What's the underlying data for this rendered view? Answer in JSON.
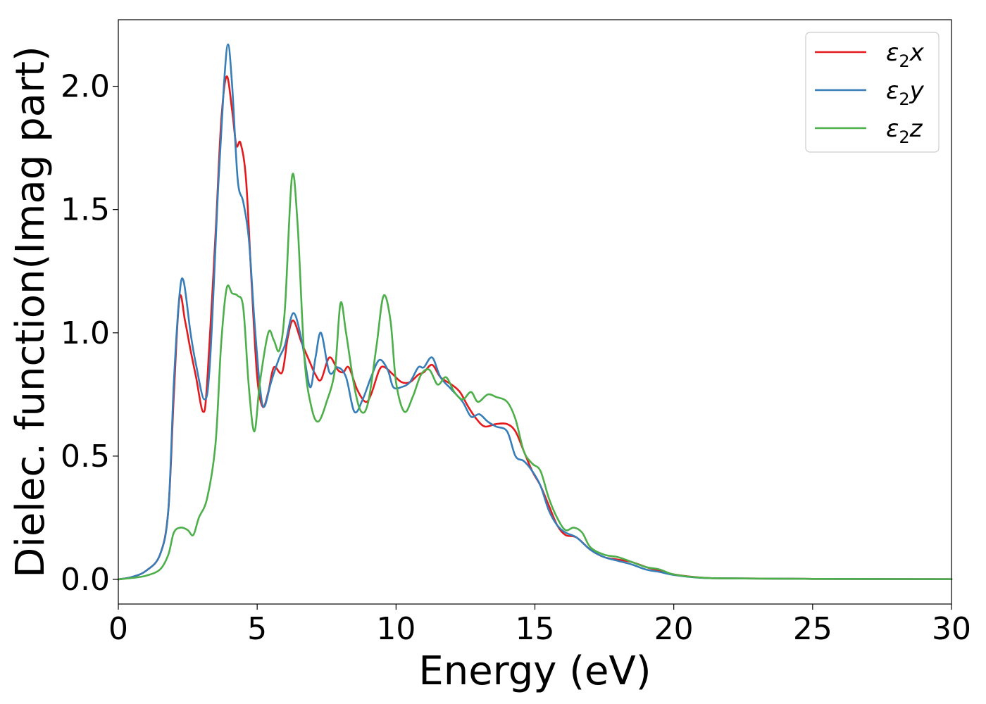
{
  "chart_data": {
    "type": "line",
    "title": "",
    "xlabel": "Energy (eV)",
    "ylabel": "Dielec. function(Imag part)",
    "xlim": [
      0,
      30
    ],
    "ylim": [
      -0.1,
      2.27
    ],
    "xticks": [
      0,
      5,
      10,
      15,
      20,
      25,
      30
    ],
    "yticks": [
      0.0,
      0.5,
      1.0,
      1.5,
      2.0
    ],
    "xtick_labels": [
      "0",
      "5",
      "10",
      "15",
      "20",
      "25",
      "30"
    ],
    "ytick_labels": [
      "0.0",
      "0.5",
      "1.0",
      "1.5",
      "2.0"
    ],
    "grid": false,
    "legend_position": "top-right",
    "series": [
      {
        "name": "ε₂x",
        "legend_main": "ε",
        "legend_sub": "2",
        "legend_suffix": "x",
        "color": "#e41a1c",
        "points": [
          [
            0,
            0
          ],
          [
            0.5,
            0.01
          ],
          [
            1,
            0.035
          ],
          [
            1.5,
            0.1
          ],
          [
            1.8,
            0.28
          ],
          [
            2.0,
            0.75
          ],
          [
            2.2,
            1.14
          ],
          [
            2.4,
            1.05
          ],
          [
            2.6,
            0.93
          ],
          [
            2.8,
            0.82
          ],
          [
            3.05,
            0.68
          ],
          [
            3.2,
            0.8
          ],
          [
            3.5,
            1.4
          ],
          [
            3.7,
            1.85
          ],
          [
            3.9,
            2.04
          ],
          [
            4.1,
            1.9
          ],
          [
            4.25,
            1.76
          ],
          [
            4.4,
            1.77
          ],
          [
            4.6,
            1.62
          ],
          [
            4.8,
            1.2
          ],
          [
            5.0,
            0.82
          ],
          [
            5.2,
            0.7
          ],
          [
            5.4,
            0.76
          ],
          [
            5.6,
            0.86
          ],
          [
            5.9,
            0.84
          ],
          [
            6.1,
            0.98
          ],
          [
            6.3,
            1.05
          ],
          [
            6.6,
            0.96
          ],
          [
            6.9,
            0.88
          ],
          [
            7.1,
            0.83
          ],
          [
            7.3,
            0.81
          ],
          [
            7.6,
            0.9
          ],
          [
            7.9,
            0.85
          ],
          [
            8.1,
            0.84
          ],
          [
            8.3,
            0.86
          ],
          [
            8.6,
            0.77
          ],
          [
            8.9,
            0.72
          ],
          [
            9.1,
            0.75
          ],
          [
            9.4,
            0.85
          ],
          [
            9.6,
            0.86
          ],
          [
            9.9,
            0.83
          ],
          [
            10.2,
            0.8
          ],
          [
            10.5,
            0.8
          ],
          [
            10.8,
            0.83
          ],
          [
            11.0,
            0.84
          ],
          [
            11.3,
            0.87
          ],
          [
            11.6,
            0.82
          ],
          [
            12.0,
            0.79
          ],
          [
            12.3,
            0.76
          ],
          [
            12.6,
            0.7
          ],
          [
            12.9,
            0.65
          ],
          [
            13.2,
            0.62
          ],
          [
            13.6,
            0.63
          ],
          [
            14.0,
            0.63
          ],
          [
            14.3,
            0.6
          ],
          [
            14.6,
            0.52
          ],
          [
            14.9,
            0.44
          ],
          [
            15.2,
            0.38
          ],
          [
            15.5,
            0.3
          ],
          [
            15.8,
            0.22
          ],
          [
            16.1,
            0.18
          ],
          [
            16.5,
            0.17
          ],
          [
            17.0,
            0.12
          ],
          [
            17.5,
            0.09
          ],
          [
            18.0,
            0.08
          ],
          [
            18.5,
            0.07
          ],
          [
            19.0,
            0.05
          ],
          [
            19.5,
            0.035
          ],
          [
            20.0,
            0.02
          ],
          [
            21,
            0.007
          ],
          [
            22,
            0.004
          ],
          [
            25,
            0.002
          ],
          [
            30,
            0.001
          ]
        ]
      },
      {
        "name": "ε₂y",
        "legend_main": "ε",
        "legend_sub": "2",
        "legend_suffix": "y",
        "color": "#377eb8",
        "points": [
          [
            0,
            0
          ],
          [
            0.5,
            0.01
          ],
          [
            1,
            0.035
          ],
          [
            1.5,
            0.1
          ],
          [
            1.8,
            0.28
          ],
          [
            2.0,
            0.8
          ],
          [
            2.2,
            1.15
          ],
          [
            2.35,
            1.21
          ],
          [
            2.6,
            1.0
          ],
          [
            2.8,
            0.87
          ],
          [
            3.1,
            0.73
          ],
          [
            3.3,
            0.88
          ],
          [
            3.6,
            1.6
          ],
          [
            3.8,
            2.0
          ],
          [
            3.95,
            2.17
          ],
          [
            4.1,
            2.0
          ],
          [
            4.3,
            1.62
          ],
          [
            4.5,
            1.53
          ],
          [
            4.7,
            1.38
          ],
          [
            4.9,
            1.05
          ],
          [
            5.1,
            0.78
          ],
          [
            5.25,
            0.7
          ],
          [
            5.5,
            0.8
          ],
          [
            5.8,
            0.9
          ],
          [
            6.0,
            0.95
          ],
          [
            6.3,
            1.08
          ],
          [
            6.6,
            0.97
          ],
          [
            6.9,
            0.78
          ],
          [
            7.1,
            0.9
          ],
          [
            7.3,
            1.0
          ],
          [
            7.6,
            0.84
          ],
          [
            7.9,
            0.86
          ],
          [
            8.2,
            0.82
          ],
          [
            8.5,
            0.68
          ],
          [
            8.8,
            0.73
          ],
          [
            9.1,
            0.82
          ],
          [
            9.4,
            0.89
          ],
          [
            9.7,
            0.85
          ],
          [
            9.9,
            0.78
          ],
          [
            10.2,
            0.78
          ],
          [
            10.5,
            0.8
          ],
          [
            10.8,
            0.86
          ],
          [
            11.0,
            0.86
          ],
          [
            11.3,
            0.9
          ],
          [
            11.6,
            0.82
          ],
          [
            12.0,
            0.77
          ],
          [
            12.4,
            0.72
          ],
          [
            12.7,
            0.66
          ],
          [
            13.0,
            0.67
          ],
          [
            13.3,
            0.64
          ],
          [
            13.6,
            0.62
          ],
          [
            14.0,
            0.6
          ],
          [
            14.3,
            0.5
          ],
          [
            14.6,
            0.48
          ],
          [
            14.9,
            0.44
          ],
          [
            15.2,
            0.38
          ],
          [
            15.5,
            0.28
          ],
          [
            15.8,
            0.22
          ],
          [
            16.1,
            0.19
          ],
          [
            16.5,
            0.17
          ],
          [
            17.0,
            0.12
          ],
          [
            17.5,
            0.09
          ],
          [
            18.0,
            0.075
          ],
          [
            18.5,
            0.06
          ],
          [
            19.0,
            0.04
          ],
          [
            19.5,
            0.03
          ],
          [
            20.0,
            0.018
          ],
          [
            21,
            0.006
          ],
          [
            22,
            0.004
          ],
          [
            25,
            0.002
          ],
          [
            30,
            0.001
          ]
        ]
      },
      {
        "name": "ε₂z",
        "legend_main": "ε",
        "legend_sub": "2",
        "legend_suffix": "z",
        "color": "#4daf4a",
        "points": [
          [
            0,
            0
          ],
          [
            0.5,
            0.006
          ],
          [
            1,
            0.015
          ],
          [
            1.5,
            0.04
          ],
          [
            1.8,
            0.1
          ],
          [
            2.0,
            0.19
          ],
          [
            2.25,
            0.21
          ],
          [
            2.5,
            0.2
          ],
          [
            2.7,
            0.18
          ],
          [
            2.9,
            0.25
          ],
          [
            3.2,
            0.33
          ],
          [
            3.5,
            0.55
          ],
          [
            3.7,
            0.95
          ],
          [
            3.9,
            1.18
          ],
          [
            4.1,
            1.16
          ],
          [
            4.3,
            1.15
          ],
          [
            4.5,
            1.1
          ],
          [
            4.7,
            0.78
          ],
          [
            4.9,
            0.6
          ],
          [
            5.1,
            0.8
          ],
          [
            5.4,
            1.0
          ],
          [
            5.6,
            0.97
          ],
          [
            5.8,
            0.93
          ],
          [
            6.0,
            1.1
          ],
          [
            6.25,
            1.63
          ],
          [
            6.45,
            1.45
          ],
          [
            6.7,
            0.9
          ],
          [
            6.95,
            0.7
          ],
          [
            7.2,
            0.64
          ],
          [
            7.5,
            0.72
          ],
          [
            7.8,
            0.85
          ],
          [
            8.0,
            1.12
          ],
          [
            8.2,
            1.0
          ],
          [
            8.5,
            0.78
          ],
          [
            8.75,
            0.68
          ],
          [
            9.0,
            0.72
          ],
          [
            9.3,
            0.95
          ],
          [
            9.55,
            1.15
          ],
          [
            9.8,
            1.05
          ],
          [
            10.0,
            0.8
          ],
          [
            10.3,
            0.68
          ],
          [
            10.6,
            0.74
          ],
          [
            10.9,
            0.83
          ],
          [
            11.2,
            0.85
          ],
          [
            11.5,
            0.79
          ],
          [
            11.8,
            0.82
          ],
          [
            12.1,
            0.76
          ],
          [
            12.4,
            0.73
          ],
          [
            12.7,
            0.76
          ],
          [
            12.95,
            0.72
          ],
          [
            13.3,
            0.75
          ],
          [
            13.6,
            0.74
          ],
          [
            14.0,
            0.72
          ],
          [
            14.3,
            0.65
          ],
          [
            14.6,
            0.52
          ],
          [
            14.9,
            0.47
          ],
          [
            15.2,
            0.44
          ],
          [
            15.5,
            0.33
          ],
          [
            15.8,
            0.25
          ],
          [
            16.1,
            0.2
          ],
          [
            16.4,
            0.21
          ],
          [
            16.7,
            0.19
          ],
          [
            17.0,
            0.13
          ],
          [
            17.5,
            0.1
          ],
          [
            18.0,
            0.09
          ],
          [
            18.5,
            0.07
          ],
          [
            19.0,
            0.05
          ],
          [
            19.5,
            0.04
          ],
          [
            20.0,
            0.02
          ],
          [
            21,
            0.007
          ],
          [
            22,
            0.004
          ],
          [
            25,
            0.002
          ],
          [
            30,
            0.001
          ]
        ]
      }
    ]
  }
}
